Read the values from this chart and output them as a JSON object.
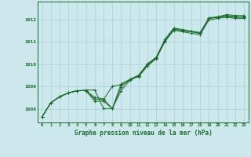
{
  "title": "Graphe pression niveau de la mer (hPa)",
  "bg_color": "#cce8ed",
  "grid_color": "#aad0d8",
  "line_color": "#1a6b2a",
  "marker_color": "#1a6b2a",
  "xlim": [
    -0.5,
    23.5
  ],
  "ylim": [
    1007.4,
    1012.8
  ],
  "yticks": [
    1008,
    1009,
    1010,
    1011,
    1012
  ],
  "xticks": [
    0,
    1,
    2,
    3,
    4,
    5,
    6,
    7,
    8,
    9,
    10,
    11,
    12,
    13,
    14,
    15,
    16,
    17,
    18,
    19,
    20,
    21,
    22,
    23
  ],
  "series": [
    [
      1007.65,
      1008.28,
      1008.55,
      1008.72,
      1008.82,
      1008.85,
      1008.85,
      1008.02,
      1008.02,
      1008.82,
      1009.28,
      1009.48,
      1009.98,
      1010.28,
      1011.05,
      1011.58,
      1011.5,
      1011.45,
      1011.38,
      1012.05,
      1012.1,
      1012.18,
      1012.12,
      1012.12
    ],
    [
      1007.65,
      1008.28,
      1008.55,
      1008.72,
      1008.82,
      1008.82,
      1008.35,
      1008.35,
      1008.02,
      1009.12,
      1009.32,
      1009.52,
      1010.02,
      1010.32,
      1011.12,
      1011.62,
      1011.55,
      1011.48,
      1011.42,
      1012.08,
      1012.12,
      1012.22,
      1012.18,
      1012.18
    ],
    [
      1007.65,
      1008.28,
      1008.55,
      1008.72,
      1008.82,
      1008.82,
      1008.52,
      1008.45,
      1008.02,
      1008.98,
      1009.32,
      1009.48,
      1009.98,
      1010.28,
      1011.05,
      1011.58,
      1011.5,
      1011.45,
      1011.38,
      1012.05,
      1012.1,
      1012.15,
      1012.1,
      1012.1
    ],
    [
      1007.65,
      1008.28,
      1008.55,
      1008.72,
      1008.82,
      1008.82,
      1008.45,
      1008.42,
      1009.02,
      1009.08,
      1009.32,
      1009.45,
      1009.92,
      1010.25,
      1011.02,
      1011.52,
      1011.45,
      1011.38,
      1011.32,
      1011.98,
      1012.05,
      1012.1,
      1012.05,
      1012.05
    ]
  ]
}
